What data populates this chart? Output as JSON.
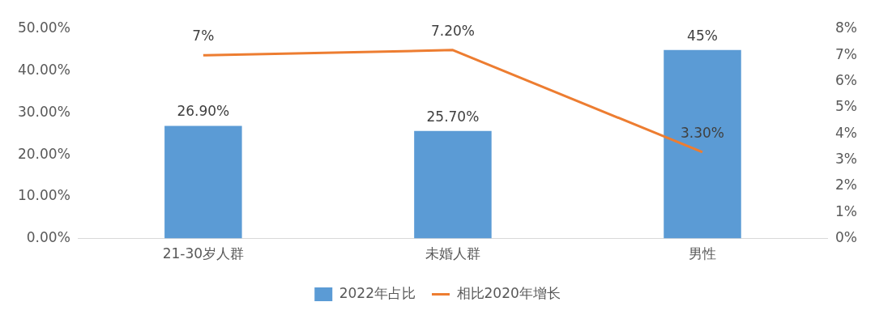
{
  "chart_data": {
    "type": "bar",
    "categories": [
      "21-30岁人群",
      "未婚人群",
      "男性"
    ],
    "series": [
      {
        "name": "2022年占比",
        "color": "#5b9bd5",
        "values": [
          26.9,
          25.7,
          45
        ],
        "value_labels": [
          "26.90%",
          "25.70%",
          "45%"
        ]
      },
      {
        "name": "相比2020年增长",
        "type": "line",
        "axis": "y2",
        "color": "#ed7d31",
        "values": [
          7,
          7.2,
          3.3
        ],
        "value_labels": [
          "7%",
          "7.20%",
          "3.30%"
        ]
      }
    ],
    "ylim": [
      0,
      50
    ],
    "yticks": [
      {
        "value": 0,
        "label": "0.00%"
      },
      {
        "value": 10,
        "label": "10.00%"
      },
      {
        "value": 20,
        "label": "20.00%"
      },
      {
        "value": 30,
        "label": "30.00%"
      },
      {
        "value": 40,
        "label": "40.00%"
      },
      {
        "value": 50,
        "label": "50.00%"
      }
    ],
    "y2lim": [
      0,
      8
    ],
    "y2ticks": [
      {
        "value": 0,
        "label": "0%"
      },
      {
        "value": 1,
        "label": "1%"
      },
      {
        "value": 2,
        "label": "2%"
      },
      {
        "value": 3,
        "label": "3%"
      },
      {
        "value": 4,
        "label": "4%"
      },
      {
        "value": 5,
        "label": "5%"
      },
      {
        "value": 6,
        "label": "6%"
      },
      {
        "value": 7,
        "label": "7%"
      },
      {
        "value": 8,
        "label": "8%"
      }
    ],
    "legend": "bottom",
    "grid": false,
    "marker": "none"
  }
}
